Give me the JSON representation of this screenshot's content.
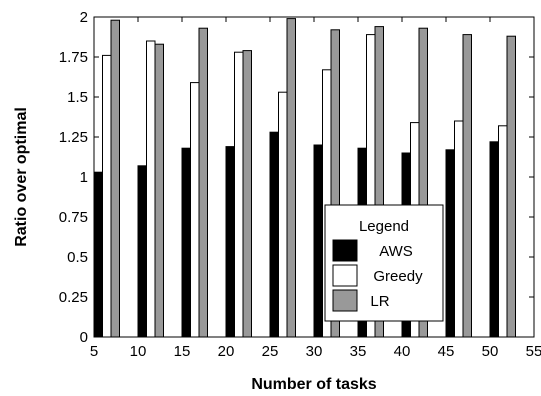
{
  "chart_data": {
    "type": "bar",
    "xlabel": "Number of tasks",
    "ylabel": "Ratio over optimal",
    "x": [
      5,
      10,
      15,
      20,
      25,
      30,
      35,
      40,
      45,
      50
    ],
    "xlim": [
      5,
      55
    ],
    "xticks": [
      "5",
      "10",
      "15",
      "20",
      "25",
      "30",
      "35",
      "40",
      "45",
      "50",
      "55"
    ],
    "ylim": [
      0,
      2
    ],
    "yticks": [
      "0",
      "0.25",
      "0.5",
      "0.75",
      "1",
      "1.25",
      "1.5",
      "1.75",
      "2"
    ],
    "grid": false,
    "legend": {
      "title": "Legend",
      "placement": "lower-right"
    },
    "series": [
      {
        "name": "AWS",
        "color": "#000000",
        "values": [
          1.03,
          1.07,
          1.18,
          1.19,
          1.28,
          1.2,
          1.18,
          1.15,
          1.17,
          1.22
        ]
      },
      {
        "name": "Greedy",
        "color": "#ffffff",
        "values": [
          1.76,
          1.85,
          1.59,
          1.78,
          1.53,
          1.67,
          1.89,
          1.34,
          1.35,
          1.32
        ]
      },
      {
        "name": "LR",
        "color": "#999999",
        "values": [
          1.98,
          1.83,
          1.93,
          1.79,
          1.99,
          1.92,
          1.94,
          1.93,
          1.89,
          1.88
        ]
      }
    ]
  }
}
